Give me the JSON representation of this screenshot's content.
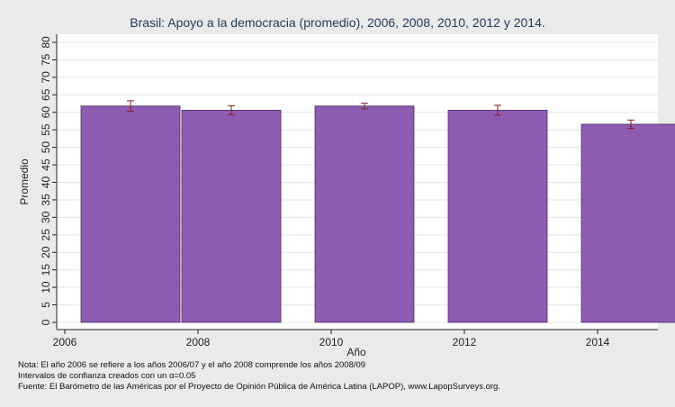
{
  "chart_data": {
    "type": "bar",
    "title": "Brasil: Apoyo a la democracia (promedio), 2006, 2008, 2010, 2012 y 2014.",
    "xlabel": "Año",
    "ylabel": "Promedio",
    "x_ticks": [
      "2006",
      "2008",
      "2010",
      "2012",
      "2014"
    ],
    "y_ticks": [
      "0",
      "5",
      "10",
      "15",
      "20",
      "25",
      "30",
      "35",
      "40",
      "45",
      "50",
      "55",
      "60",
      "65",
      "70",
      "75",
      "80"
    ],
    "ylim": [
      0,
      80
    ],
    "categories": [
      "2006",
      "2008",
      "2010",
      "2012",
      "2014"
    ],
    "values": [
      61.8,
      60.6,
      61.8,
      60.6,
      56.6
    ],
    "ci_low": [
      60.3,
      59.3,
      61.0,
      59.2,
      55.4
    ],
    "ci_high": [
      63.3,
      61.9,
      62.6,
      62.0,
      57.8
    ],
    "grid": true,
    "bar_color": "#8e5bb3",
    "error_color": "#8b1a1a"
  },
  "notes": {
    "line1": "Nota: El año 2006 se refiere a los años 2006/07 y el año 2008 comprende los años 2008/09",
    "line2": "Intervalos de confianza creados con un α=0.05",
    "line3": "Fuente: El Barómetro de las Américas por el Proyecto de Opinión Pública de América Latina (LAPOP), www.LapopSurveys.org."
  }
}
